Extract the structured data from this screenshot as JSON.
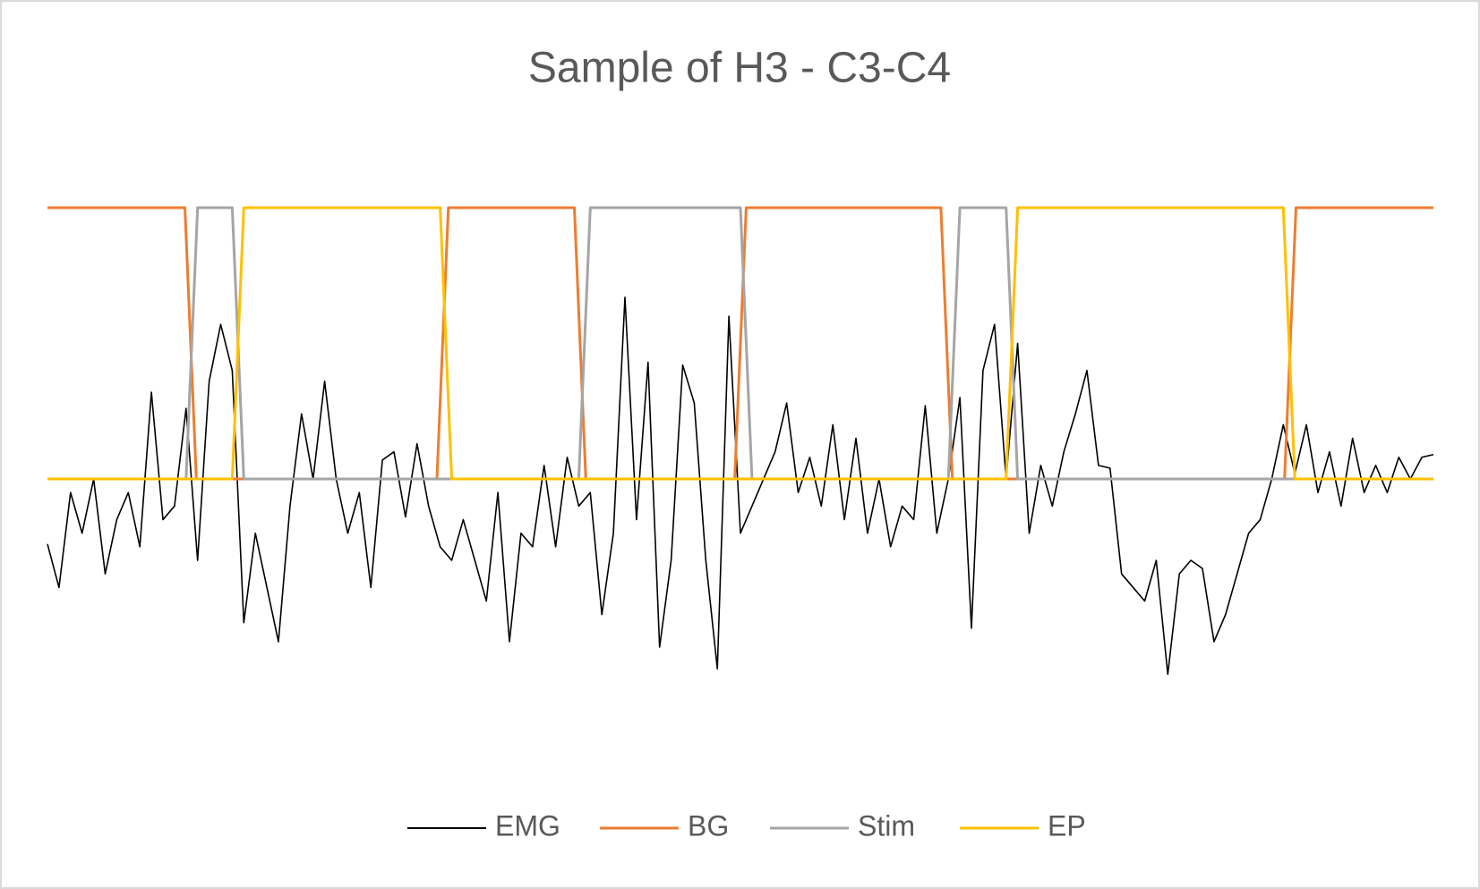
{
  "chart_data": {
    "type": "line",
    "title": "Sample of H3 - C3-C4",
    "ylim": [
      -1,
      1.5
    ],
    "legend": "bottom",
    "series": [
      {
        "name": "EMG",
        "color": "#000000",
        "values": [
          -0.24,
          -0.4,
          -0.05,
          -0.2,
          0.0,
          -0.35,
          -0.15,
          -0.05,
          -0.25,
          0.32,
          -0.15,
          -0.1,
          0.26,
          -0.3,
          0.36,
          0.57,
          0.4,
          -0.53,
          -0.2,
          -0.4,
          -0.6,
          -0.1,
          0.24,
          0.0,
          0.36,
          0.0,
          -0.2,
          -0.05,
          -0.4,
          0.07,
          0.1,
          -0.14,
          0.13,
          -0.1,
          -0.25,
          -0.3,
          -0.15,
          -0.3,
          -0.45,
          -0.05,
          -0.6,
          -0.2,
          -0.25,
          0.05,
          -0.25,
          0.08,
          -0.1,
          -0.05,
          -0.5,
          -0.2,
          0.67,
          -0.15,
          0.43,
          -0.62,
          -0.3,
          0.42,
          0.28,
          -0.3,
          -0.7,
          0.6,
          -0.2,
          -0.1,
          0.0,
          0.1,
          0.28,
          -0.05,
          0.08,
          -0.1,
          0.2,
          -0.15,
          0.15,
          -0.2,
          0.0,
          -0.25,
          -0.1,
          -0.15,
          0.27,
          -0.2,
          0.0,
          0.3,
          -0.55,
          0.4,
          0.57,
          0.0,
          0.5,
          -0.2,
          0.05,
          -0.1,
          0.1,
          0.24,
          0.4,
          0.05,
          0.04,
          -0.35,
          -0.4,
          -0.45,
          -0.3,
          -0.72,
          -0.35,
          -0.3,
          -0.33,
          -0.6,
          -0.5,
          -0.35,
          -0.2,
          -0.15,
          0.0,
          0.2,
          0.02,
          0.2,
          -0.05,
          0.1,
          -0.1,
          0.15,
          -0.05,
          0.05,
          -0.05,
          0.08,
          0.0,
          0.08,
          0.09
        ]
      },
      {
        "name": "BG",
        "color": "#ed7d31",
        "values": [
          1,
          1,
          1,
          1,
          1,
          1,
          1,
          1,
          1,
          1,
          1,
          1,
          1,
          0,
          0,
          0,
          0,
          0,
          0,
          0,
          0,
          0,
          0,
          0,
          0,
          0,
          0,
          0,
          0,
          0,
          0,
          0,
          0,
          0,
          0,
          1,
          1,
          1,
          1,
          1,
          1,
          1,
          1,
          1,
          1,
          1,
          1,
          0,
          0,
          0,
          0,
          0,
          0,
          0,
          0,
          0,
          0,
          0,
          0,
          0,
          0,
          1,
          1,
          1,
          1,
          1,
          1,
          1,
          1,
          1,
          1,
          1,
          1,
          1,
          1,
          1,
          1,
          1,
          1,
          0,
          0,
          0,
          0,
          0,
          0,
          0,
          0,
          0,
          0,
          0,
          0,
          0,
          0,
          0,
          0,
          0,
          0,
          0,
          0,
          0,
          0,
          0,
          0,
          0,
          0,
          0,
          0,
          0,
          0,
          1,
          1,
          1,
          1,
          1,
          1,
          1,
          1,
          1,
          1,
          1,
          1,
          1
        ]
      },
      {
        "name": "Stim",
        "color": "#a5a5a5",
        "values": [
          0,
          0,
          0,
          0,
          0,
          0,
          0,
          0,
          0,
          0,
          0,
          0,
          0,
          1,
          1,
          1,
          1,
          0,
          0,
          0,
          0,
          0,
          0,
          0,
          0,
          0,
          0,
          0,
          0,
          0,
          0,
          0,
          0,
          0,
          0,
          0,
          0,
          0,
          0,
          0,
          0,
          0,
          0,
          0,
          0,
          0,
          0,
          1,
          1,
          1,
          1,
          1,
          1,
          1,
          1,
          1,
          1,
          1,
          1,
          1,
          1,
          0,
          0,
          0,
          0,
          0,
          0,
          0,
          0,
          0,
          0,
          0,
          0,
          0,
          0,
          0,
          0,
          0,
          0,
          1,
          1,
          1,
          1,
          1,
          0,
          0,
          0,
          0,
          0,
          0,
          0,
          0,
          0,
          0,
          0,
          0,
          0,
          0,
          0,
          0,
          0,
          0,
          0,
          0,
          0,
          0,
          0,
          0,
          0,
          0,
          0,
          0,
          0,
          0,
          0,
          0,
          0,
          0,
          0,
          0,
          0
        ]
      },
      {
        "name": "EP",
        "color": "#ffc000",
        "values": [
          0,
          0,
          0,
          0,
          0,
          0,
          0,
          0,
          0,
          0,
          0,
          0,
          0,
          0,
          0,
          0,
          0,
          1,
          1,
          1,
          1,
          1,
          1,
          1,
          1,
          1,
          1,
          1,
          1,
          1,
          1,
          1,
          1,
          1,
          1,
          0,
          0,
          0,
          0,
          0,
          0,
          0,
          0,
          0,
          0,
          0,
          0,
          0,
          0,
          0,
          0,
          0,
          0,
          0,
          0,
          0,
          0,
          0,
          0,
          0,
          0,
          0,
          0,
          0,
          0,
          0,
          0,
          0,
          0,
          0,
          0,
          0,
          0,
          0,
          0,
          0,
          0,
          0,
          0,
          0,
          0,
          0,
          0,
          0,
          1,
          1,
          1,
          1,
          1,
          1,
          1,
          1,
          1,
          1,
          1,
          1,
          1,
          1,
          1,
          1,
          1,
          1,
          1,
          1,
          1,
          1,
          1,
          1,
          0,
          0,
          0,
          0,
          0,
          0,
          0,
          0,
          0,
          0,
          0,
          0,
          0
        ]
      }
    ]
  }
}
